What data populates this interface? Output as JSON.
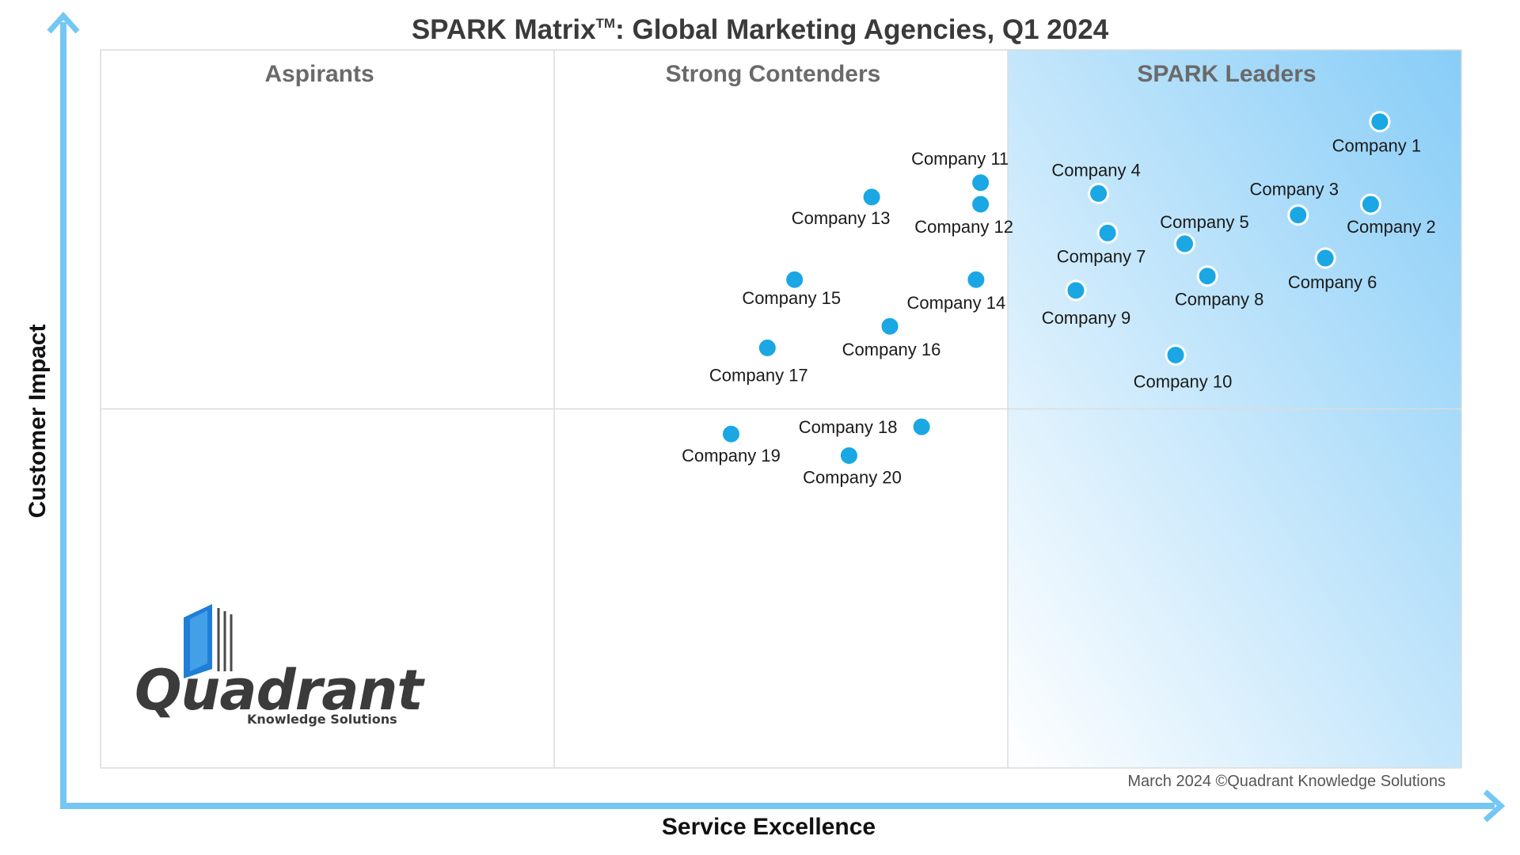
{
  "colors": {
    "axis": "#74c7f2",
    "point_fill": "#1aa7e4",
    "point_stroke": "#ffffff",
    "leader_gradient_start": "#88cdf7",
    "leader_gradient_end": "#ffffff",
    "grid": "#dcdcdc"
  },
  "logo": {
    "name": "Quadrant",
    "tagline": "Knowledge Solutions"
  },
  "footer": {
    "copyright": "March 2024 ©Quadrant Knowledge Solutions"
  },
  "chart_data": {
    "type": "scatter",
    "title": "SPARK Matrix",
    "title_mark": "TM",
    "title_rest": ": Global Marketing Agencies, Q1 2024",
    "xlabel": "Service Excellence",
    "ylabel": "Customer Impact",
    "xlim": [
      0,
      3
    ],
    "ylim": [
      0,
      2
    ],
    "grid": true,
    "quadrants": [
      "Aspirants",
      "Strong Contenders",
      "SPARK Leaders"
    ],
    "points": [
      {
        "label": "Company 1",
        "x": 2.82,
        "y": 1.8
      },
      {
        "label": "Company 2",
        "x": 2.8,
        "y": 1.57
      },
      {
        "label": "Company 3",
        "x": 2.64,
        "y": 1.54
      },
      {
        "label": "Company 4",
        "x": 2.2,
        "y": 1.6
      },
      {
        "label": "Company 5",
        "x": 2.39,
        "y": 1.46
      },
      {
        "label": "Company 6",
        "x": 2.7,
        "y": 1.42
      },
      {
        "label": "Company 7",
        "x": 2.22,
        "y": 1.49
      },
      {
        "label": "Company 8",
        "x": 2.44,
        "y": 1.37
      },
      {
        "label": "Company 9",
        "x": 2.15,
        "y": 1.33
      },
      {
        "label": "Company 10",
        "x": 2.37,
        "y": 1.15
      },
      {
        "label": "Company 11",
        "x": 1.94,
        "y": 1.63
      },
      {
        "label": "Company 12",
        "x": 1.94,
        "y": 1.57
      },
      {
        "label": "Company 13",
        "x": 1.7,
        "y": 1.59
      },
      {
        "label": "Company 14",
        "x": 1.93,
        "y": 1.36
      },
      {
        "label": "Company 15",
        "x": 1.53,
        "y": 1.36
      },
      {
        "label": "Company 16",
        "x": 1.74,
        "y": 1.23
      },
      {
        "label": "Company 17",
        "x": 1.47,
        "y": 1.17
      },
      {
        "label": "Company 18",
        "x": 1.81,
        "y": 0.95
      },
      {
        "label": "Company 19",
        "x": 1.39,
        "y": 0.93
      },
      {
        "label": "Company 20",
        "x": 1.65,
        "y": 0.87
      }
    ]
  }
}
